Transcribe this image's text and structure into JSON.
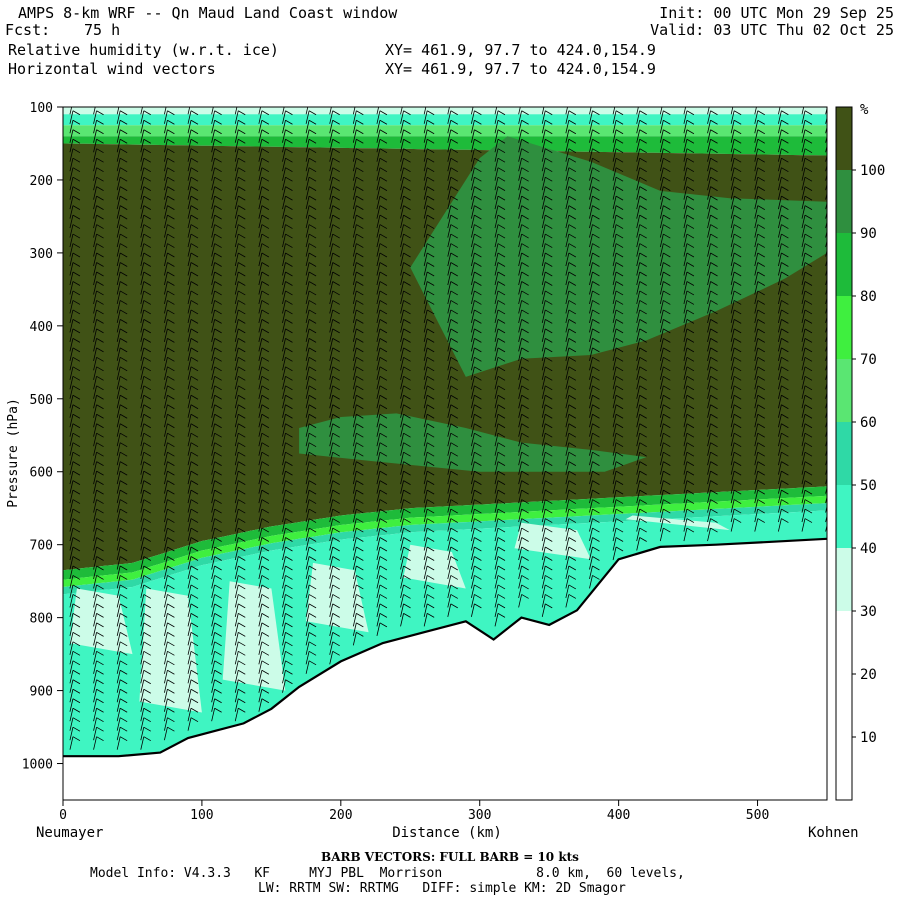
{
  "header": {
    "title": "AMPS 8-km WRF -- Qn Maud Land Coast window",
    "fcst_label": "Fcst:",
    "fcst_value": "75 h",
    "field1": "Relative humidity (w.r.t. ice)",
    "field2": "Horizontal wind vectors",
    "xy1": "XY= 461.9, 97.7 to 424.0,154.9",
    "xy2": "XY= 461.9, 97.7 to 424.0,154.9",
    "init": "Init: 00 UTC Mon 29 Sep 25",
    "valid": "Valid: 03 UTC Thu 02 Oct 25"
  },
  "footer": {
    "barb_note": "BARB VECTORS:  FULL BARB = 10 kts",
    "model_line1": "Model Info: V4.3.3   KF     MYJ PBL  Morrison            8.0 km,  60 levels,",
    "model_line2": "LW: RRTM SW: RRTMG   DIFF: simple KM: 2D Smagor"
  },
  "colors": {
    "c0_10": "#ffffff",
    "c10_20": "#ffffff",
    "c20_30": "#ffffff",
    "c30_40": "#ccfce8",
    "c40_50": "#3ff5c2",
    "c50_60": "#2fd9a6",
    "c60_70": "#5ae672",
    "c70_80": "#3fef3f",
    "c80_90": "#1ebb3a",
    "c90_100": "#2f8f3f",
    "c100": "#405216",
    "terrain": "#ffffff",
    "barb": "#000000"
  },
  "chart_data": {
    "type": "heatmap",
    "subtype": "vertical cross-section",
    "title": "Relative humidity (w.r.t. ice)",
    "overlay": "Horizontal wind vectors",
    "xlabel": "Distance (km)",
    "ylabel": "Pressure (hPa)",
    "xlim": [
      0,
      550
    ],
    "ylim": [
      1050,
      100
    ],
    "y_scale": "pressure (inverted)",
    "x_ticks": [
      0,
      100,
      200,
      300,
      400,
      500
    ],
    "y_ticks": [
      100,
      200,
      300,
      400,
      500,
      600,
      700,
      800,
      900,
      1000
    ],
    "x_end_labels": {
      "left": "Neumayer",
      "right": "Kohnen"
    },
    "colorbar": {
      "unit": "%",
      "levels": [
        10,
        20,
        30,
        40,
        50,
        60,
        70,
        80,
        90,
        100
      ]
    },
    "terrain_surface": {
      "x_km": [
        0,
        40,
        70,
        90,
        110,
        130,
        150,
        170,
        200,
        230,
        260,
        290,
        310,
        330,
        350,
        370,
        400,
        430,
        470,
        510,
        550
      ],
      "p_hpa": [
        990,
        990,
        985,
        965,
        955,
        945,
        925,
        895,
        860,
        835,
        820,
        805,
        830,
        800,
        810,
        790,
        720,
        703,
        700,
        696,
        692
      ]
    },
    "dry_layer_top": {
      "x_km": [
        0,
        50,
        100,
        150,
        200,
        250,
        300,
        350,
        400,
        450,
        500,
        550
      ],
      "p_hpa": [
        740,
        730,
        700,
        680,
        665,
        655,
        650,
        645,
        640,
        635,
        630,
        625
      ]
    }
  }
}
